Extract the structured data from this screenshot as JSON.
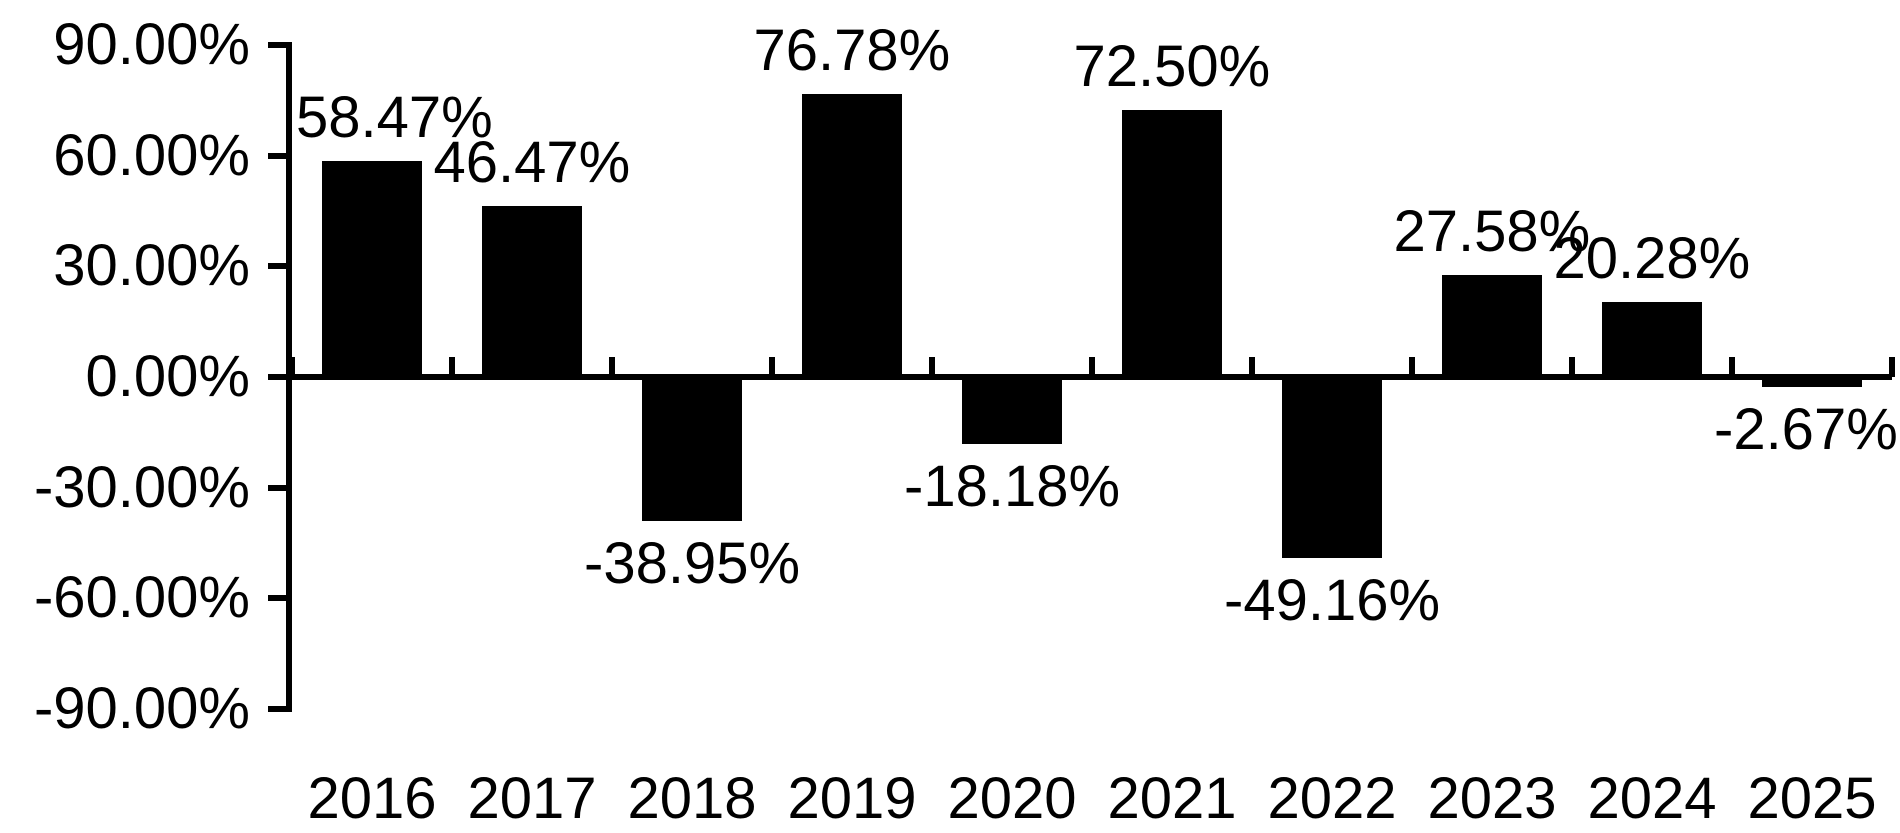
{
  "chart_data": {
    "type": "bar",
    "title": "",
    "xlabel": "",
    "ylabel": "",
    "categories": [
      "2016",
      "2017",
      "2018",
      "2019",
      "2020",
      "2021",
      "2022",
      "2023",
      "2024",
      "2025"
    ],
    "values": [
      58.47,
      46.47,
      -38.95,
      76.78,
      -18.18,
      72.5,
      -49.16,
      27.58,
      20.28,
      -2.67
    ],
    "value_labels": [
      "58.47%",
      "46.47%",
      "-38.95%",
      "76.78%",
      "-18.18%",
      "72.50%",
      "-49.16%",
      "27.58%",
      "20.28%",
      "-2.67%"
    ],
    "ylim": [
      -90,
      90
    ],
    "ytick_step": 30,
    "ytick_labels": [
      "90.00%",
      "60.00%",
      "30.00%",
      "0.00%",
      "-30.00%",
      "-60.00%",
      "-90.00%"
    ],
    "ytick_values": [
      90,
      60,
      30,
      0,
      -30,
      -60,
      -90
    ],
    "bar_color": "#000000",
    "axis_color": "#000000",
    "text_color": "#000000",
    "background_color": "#ffffff",
    "grid": false,
    "legend": null,
    "value_label_position": "outside-end"
  }
}
